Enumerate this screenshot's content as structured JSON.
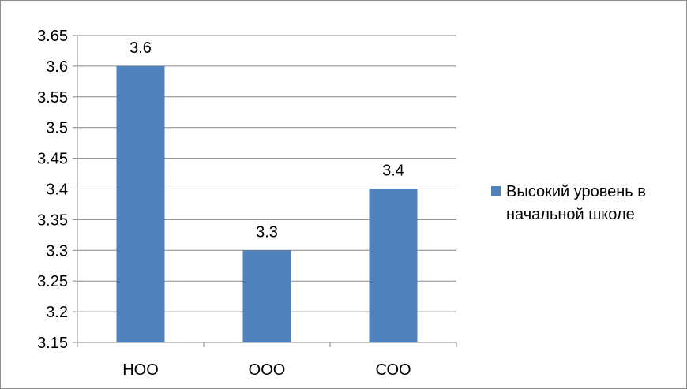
{
  "chart_data": {
    "type": "bar",
    "title": "",
    "xlabel": "",
    "ylabel": "",
    "categories": [
      "НОО",
      "ООО",
      "СОО"
    ],
    "series": [
      {
        "name": "Высокий уровень в начальной школе",
        "values": [
          3.6,
          3.3,
          3.4
        ],
        "color": "#4f81bd"
      }
    ],
    "data_labels": [
      "3.6",
      "3.3",
      "3.4"
    ],
    "ylim": [
      3.15,
      3.65
    ],
    "y_ticks": [
      3.15,
      3.2,
      3.25,
      3.3,
      3.35,
      3.4,
      3.45,
      3.5,
      3.55,
      3.6,
      3.65
    ],
    "y_tick_labels": [
      "3.15",
      "3.2",
      "3.25",
      "3.3",
      "3.35",
      "3.4",
      "3.45",
      "3.5",
      "3.55",
      "3.6",
      "3.65"
    ],
    "grid": true,
    "legend_position": "right"
  }
}
